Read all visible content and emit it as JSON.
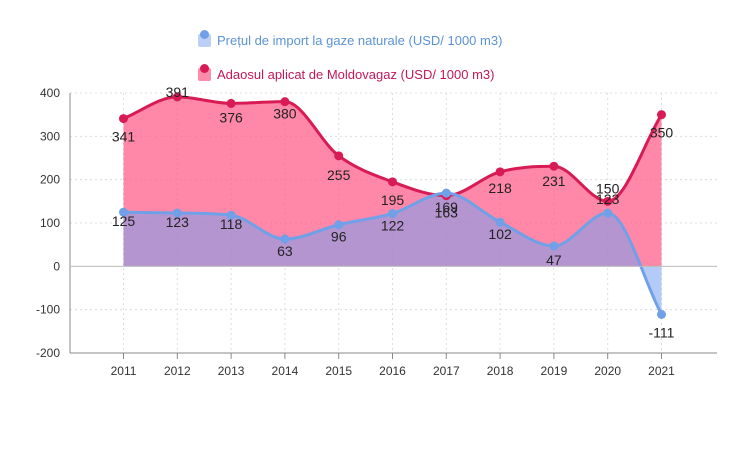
{
  "legend": {
    "series1_label": "Prețul de import la gaze naturale (USD/ 1000 m3)",
    "series2_label": "Adaosul aplicat de Moldovagaz (USD/ 1000 m3)"
  },
  "colors": {
    "series1_line": "#6fa0e8",
    "series1_fill": "rgba(120,160,240,0.55)",
    "series1_text": "#5b93d6",
    "series2_line": "#d81b54",
    "series2_fill": "rgba(255,90,135,0.72)",
    "series2_text": "#c2185b"
  },
  "chart_data": {
    "type": "area",
    "categories": [
      "2011",
      "2012",
      "2013",
      "2014",
      "2015",
      "2016",
      "2017",
      "2018",
      "2019",
      "2020",
      "2021"
    ],
    "series": [
      {
        "name": "Prețul de import la gaze naturale (USD/ 1000 m3)",
        "values": [
          125,
          123,
          118,
          63,
          96,
          122,
          169,
          102,
          47,
          123,
          -111
        ]
      },
      {
        "name": "Adaosul aplicat de Moldovagaz (USD/ 1000 m3)",
        "values": [
          341,
          391,
          376,
          380,
          255,
          195,
          163,
          218,
          231,
          150,
          350
        ]
      }
    ],
    "ylim": [
      -200,
      400
    ],
    "yticks": [
      -200,
      -100,
      0,
      100,
      200,
      300,
      400
    ],
    "grid": true,
    "legend_position": "top"
  }
}
